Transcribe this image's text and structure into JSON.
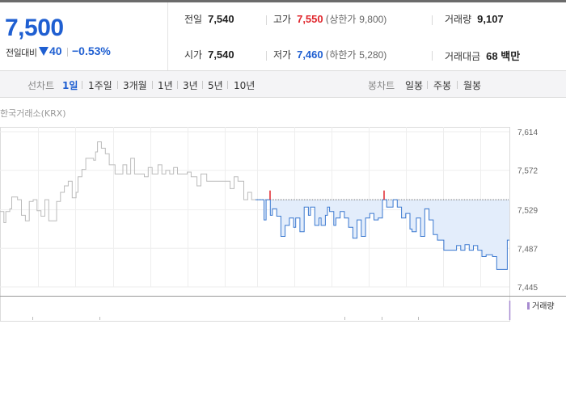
{
  "quote": {
    "price": "7,500",
    "change_label": "전일대비",
    "change_direction": "down",
    "change_value": "40",
    "change_rate": "−0.53%",
    "price_color": "#1f5fd1"
  },
  "stats": {
    "prev_close": {
      "label": "전일",
      "value": "7,540"
    },
    "high": {
      "label": "고가",
      "value": "7,550",
      "limit_label": "(상한가",
      "limit_value": "9,800)"
    },
    "volume": {
      "label": "거래량",
      "value": "9,107"
    },
    "open": {
      "label": "시가",
      "value": "7,540"
    },
    "low": {
      "label": "저가",
      "value": "7,460",
      "limit_label": "(하한가",
      "limit_value": "5,280)"
    },
    "trade_amount": {
      "label": "거래대금",
      "value": "68 백만"
    }
  },
  "period_bar": {
    "line_label": "선차트",
    "line_periods": [
      "1일",
      "1주일",
      "3개월",
      "1년",
      "3년",
      "5년",
      "10년"
    ],
    "active_period": "1일",
    "candle_label": "봉차트",
    "candle_periods": [
      "일봉",
      "주봉",
      "월봉"
    ]
  },
  "chart": {
    "source_label": "한국거래소(KRX)",
    "volume_label": "거래량",
    "y_ticks": [
      "7,614",
      "7,572",
      "7,529",
      "7,487",
      "7,445"
    ],
    "colors": {
      "past": "#bbbbbb",
      "today": "#3a78d0",
      "fill": "#e3edfb",
      "up_tick": "#e0262c",
      "volume_legend": "#a78bd0"
    }
  },
  "chart_data": {
    "type": "line",
    "title": "",
    "xlabel": "",
    "ylabel": "",
    "ylim": [
      7445,
      7614
    ],
    "reference_price": 7540,
    "series": [
      {
        "values": [
          7527,
          7527,
          7515,
          7527,
          7527,
          7530,
          7543,
          7543,
          7543,
          7540,
          7540,
          7523,
          7523,
          7517,
          7517,
          7538,
          7538,
          7540,
          7540,
          7528,
          7528,
          7522,
          7522,
          7540,
          7540,
          7517,
          7517,
          7517,
          7517,
          7538,
          7538,
          7548,
          7548,
          7555,
          7555,
          7560,
          7560,
          7542,
          7542,
          7548,
          7565,
          7565,
          7573,
          7573,
          7585,
          7585,
          7585,
          7585,
          7583,
          7592,
          7603,
          7603,
          7596,
          7596,
          7590,
          7590,
          7578,
          7578,
          7578,
          7568,
          7568,
          7568,
          7568,
          7578,
          7578,
          7568,
          7568,
          7585,
          7585,
          7568,
          7568,
          7568,
          7568,
          7568,
          7565,
          7565,
          7575,
          7575,
          7568,
          7568,
          7568,
          7578,
          7578,
          7568,
          7568,
          7572,
          7572,
          7568,
          7568,
          7575,
          7575,
          7568,
          7568,
          7568,
          7568,
          7568,
          7570,
          7570,
          7565,
          7565,
          7565,
          7555,
          7555,
          7568,
          7568,
          7568,
          7560,
          7560,
          7560,
          7560,
          7560,
          7560,
          7560,
          7560,
          7560,
          7560,
          7560,
          7560,
          7552,
          7552,
          7565,
          7565,
          7560,
          7560,
          7560,
          7540,
          7540,
          7548,
          7548,
          7540,
          7540
        ]
      },
      {
        "values": [
          7540,
          7540,
          7540,
          7540,
          7518,
          7540,
          7540,
          7523,
          7530,
          7530,
          7522,
          7522,
          7500,
          7500,
          7512,
          7512,
          7520,
          7520,
          7510,
          7520,
          7520,
          7505,
          7505,
          7532,
          7532,
          7523,
          7532,
          7532,
          7512,
          7512,
          7520,
          7512,
          7512,
          7523,
          7532,
          7527,
          7527,
          7512,
          7520,
          7520,
          7527,
          7527,
          7520,
          7520,
          7510,
          7510,
          7498,
          7498,
          7518,
          7518,
          7500,
          7500,
          7520,
          7520,
          7525,
          7525,
          7518,
          7518,
          7520,
          7520,
          7540,
          7540,
          7532,
          7532,
          7532,
          7540,
          7540,
          7532,
          7532,
          7520,
          7520,
          7525,
          7525,
          7508,
          7505,
          7505,
          7520,
          7520,
          7500,
          7500,
          7530,
          7530,
          7518,
          7518,
          7502,
          7502,
          7496,
          7496,
          7496,
          7485,
          7485,
          7485,
          7485,
          7485,
          7485,
          7490,
          7490,
          7485,
          7485,
          7491,
          7491,
          7485,
          7485,
          7490,
          7490,
          7485,
          7485,
          7478,
          7478,
          7480,
          7480,
          7480,
          7478,
          7478,
          7464,
          7464,
          7464,
          7464,
          7464,
          7496
        ]
      }
    ]
  }
}
